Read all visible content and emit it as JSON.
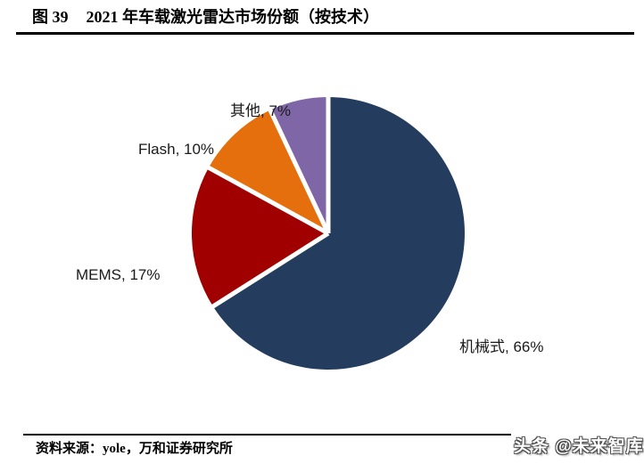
{
  "header": {
    "title_prefix": "图 39",
    "title_text": "2021 年车载激光雷达市场份额（按技术）"
  },
  "chart_data": {
    "type": "pie",
    "title": "2021 年车载激光雷达市场份额（按技术）",
    "categories": [
      "机械式",
      "MEMS",
      "Flash",
      "其他"
    ],
    "values": [
      66,
      17,
      10,
      7
    ],
    "unit": "%",
    "colors": [
      "#243d5f",
      "#a00000",
      "#e56f0c",
      "#7f66a6"
    ],
    "slice_ids": [
      "mechanical",
      "mems",
      "flash",
      "others"
    ],
    "labels": [
      "机械式, 66%",
      "MEMS, 17%",
      "Flash, 10%",
      "其他, 7%"
    ],
    "start_angle_deg": 0,
    "direction": "clockwise",
    "legend": "none",
    "separator_color": "#ffffff"
  },
  "footer": {
    "source": "资料来源：yole，万和证券研究所"
  },
  "watermark": {
    "text": "头条 @未来智库"
  }
}
